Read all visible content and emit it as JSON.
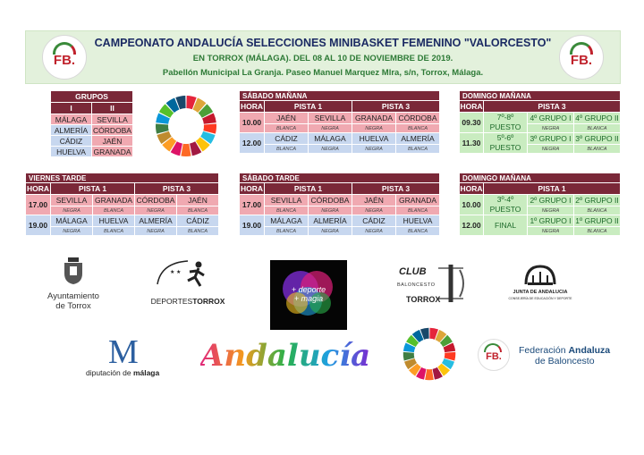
{
  "header": {
    "title": "CAMPEONATO ANDALUCÍA SELECCIONES MINIBASKET FEMENINO \"VALORCESTO\"",
    "subtitle": "EN TORROX (MÁLAGA). DEL 08 AL 10 DE NOVIEMBRE DE 2019.",
    "venue": "Pabellón Municipal La Granja. Paseo Manuel Marquez Mlra, s/n, Torrox, Málaga.",
    "logo_text": "FB."
  },
  "grupos": {
    "title": "GRUPOS",
    "cols": [
      "I",
      "II"
    ],
    "rows": [
      [
        "MÁLAGA",
        "SEVILLA"
      ],
      [
        "ALMERÍA",
        "CÓRDOBA"
      ],
      [
        "CÁDIZ",
        "JAÉN"
      ],
      [
        "HUELVA",
        "GRANADA"
      ]
    ]
  },
  "colors": {
    "maroon": "#7a2838",
    "pink": "#f0a9b1",
    "blue": "#c7d7ef",
    "green": "#c9ecc0"
  },
  "sabado_manana": {
    "title": "SÁBADO MAÑANA",
    "hora": "HORA",
    "pista1": "PISTA 1",
    "pista3": "PISTA 3",
    "rows": [
      {
        "hora": "10.00",
        "teams": [
          "JAÉN",
          "SEVILLA",
          "GRANADA",
          "CÓRDOBA"
        ],
        "colors": [
          "BLANCA",
          "NEGRA",
          "NEGRA",
          "BLANCA"
        ]
      },
      {
        "hora": "12.00",
        "teams": [
          "CÁDIZ",
          "MÁLAGA",
          "HUELVA",
          "ALMERÍA"
        ],
        "colors": [
          "BLANCA",
          "NEGRA",
          "NEGRA",
          "BLANCA"
        ]
      }
    ]
  },
  "domingo_manana_1": {
    "title": "DOMINGO MAÑANA",
    "hora": "HORA",
    "pista3": "PISTA 3",
    "rows": [
      {
        "hora": "09.30",
        "puesto": [
          "7º-8º",
          "PUESTO"
        ],
        "teams": [
          "4º GRUPO I",
          "4º GRUPO II"
        ],
        "colors": [
          "NEGRA",
          "BLANCA"
        ]
      },
      {
        "hora": "11.30",
        "puesto": [
          "5º-6º",
          "PUESTO"
        ],
        "teams": [
          "3º GRUPO I",
          "3º GRUPO II"
        ],
        "colors": [
          "NEGRA",
          "BLANCA"
        ]
      }
    ]
  },
  "viernes_tarde": {
    "title": "VIERNES TARDE",
    "hora": "HORA",
    "pista1": "PISTA 1",
    "pista3": "PISTA 3",
    "rows": [
      {
        "hora": "17.00",
        "teams": [
          "SEVILLA",
          "GRANADA",
          "CÓRDOBA",
          "JAÉN"
        ],
        "colors": [
          "NEGRA",
          "BLANCA",
          "NEGRA",
          "BLANCA"
        ]
      },
      {
        "hora": "19.00",
        "teams": [
          "MÁLAGA",
          "HUELVA",
          "ALMERÍA",
          "CÁDIZ"
        ],
        "colors": [
          "NEGRA",
          "BLANCA",
          "NEGRA",
          "BLANCA"
        ]
      }
    ]
  },
  "sabado_tarde": {
    "title": "SÁBADO TARDE",
    "hora": "HORA",
    "pista1": "PISTA 1",
    "pista3": "PISTA 3",
    "rows": [
      {
        "hora": "17.00",
        "teams": [
          "SEVILLA",
          "CÓRDOBA",
          "JAÉN",
          "GRANADA"
        ],
        "colors": [
          "BLANCA",
          "NEGRA",
          "NEGRA",
          "BLANCA"
        ]
      },
      {
        "hora": "19.00",
        "teams": [
          "MÁLAGA",
          "ALMERÍA",
          "CÁDIZ",
          "HUELVA"
        ],
        "colors": [
          "BLANCA",
          "NEGRA",
          "NEGRA",
          "BLANCA"
        ]
      }
    ]
  },
  "domingo_manana_2": {
    "title": "DOMINGO MAÑANA",
    "hora": "HORA",
    "pista1": "PISTA 1",
    "rows": [
      {
        "hora": "10.00",
        "puesto": [
          "3º-4º",
          "PUESTO"
        ],
        "teams": [
          "2º GRUPO I",
          "2º GRUPO II"
        ],
        "colors": [
          "NEGRA",
          "BLANCA"
        ]
      },
      {
        "hora": "12.00",
        "puesto": [
          "FINAL"
        ],
        "teams": [
          "1º GRUPO I",
          "1º GRUPO II"
        ],
        "colors": [
          "NEGRA",
          "BLANCA"
        ]
      }
    ]
  },
  "logos": {
    "ayto": [
      "Ayuntamiento",
      "de Torrox"
    ],
    "deportes": {
      "a": "DEPORTES",
      "b": "TORROX"
    },
    "deporte_magia": [
      "+ deporte",
      "+ magia"
    ],
    "club": {
      "club": "CLUB",
      "bal": "BALONCESTO",
      "torrox": "TORROX"
    },
    "junta": {
      "name": "JUNTA DE ANDALUCIA",
      "sub": "CONSEJERÍA DE EDUCACIÓN Y DEPORTE"
    },
    "diputacion": {
      "m": "M",
      "a": "diputación de ",
      "b": "málaga"
    },
    "andalucia": "Andalucía",
    "federacion": {
      "a": "Federación ",
      "b": "Andaluza",
      "c": "de Baloncesto"
    }
  }
}
